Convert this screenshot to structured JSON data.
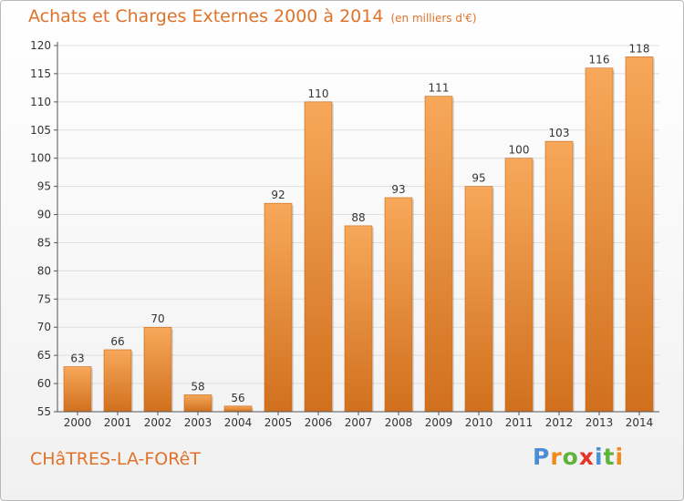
{
  "header": {
    "title": "Achats et Charges Externes 2000 à 2014",
    "subtitle": "(en milliers d'€)"
  },
  "footer": {
    "town": "CHâTRES-LA-FORêT",
    "logo_letters": [
      "P",
      "r",
      "o",
      "x",
      "i",
      "t",
      "i"
    ],
    "logo_colors": [
      "#4a8fd6",
      "#f08a1c",
      "#5fb23a",
      "#e6332a",
      "#4a8fd6",
      "#5fb23a",
      "#f08a1c"
    ]
  },
  "colors": {
    "bar_top": "#f7a85a",
    "bar_bottom": "#d0701e",
    "accent": "#e0722a",
    "grid": "#dedede",
    "text": "#333333"
  },
  "chart_data": {
    "type": "bar",
    "title": "Achats et Charges Externes 2000 à 2014",
    "subtitle": "(en milliers d'€)",
    "categories": [
      "2000",
      "2001",
      "2002",
      "2003",
      "2004",
      "2005",
      "2006",
      "2007",
      "2008",
      "2009",
      "2010",
      "2011",
      "2012",
      "2013",
      "2014"
    ],
    "values": [
      63,
      66,
      70,
      58,
      56,
      92,
      110,
      88,
      93,
      111,
      95,
      100,
      103,
      116,
      118
    ],
    "data_labels": [
      "63",
      "66",
      "70",
      "58",
      "56",
      "92",
      "110",
      "88",
      "93",
      "111",
      "95",
      "100",
      "103",
      "116",
      "118"
    ],
    "yticks": [
      55,
      60,
      65,
      70,
      75,
      80,
      85,
      90,
      95,
      100,
      105,
      110,
      115,
      120
    ],
    "ylim": [
      55,
      120
    ],
    "grid": true,
    "legend": "none"
  }
}
